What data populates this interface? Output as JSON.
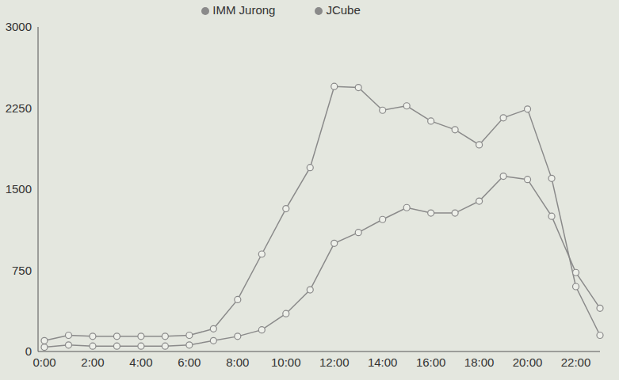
{
  "chart_data": {
    "type": "line",
    "categories": [
      "0:00",
      null,
      "2:00",
      null,
      "4:00",
      null,
      "6:00",
      null,
      "8:00",
      null,
      "10:00",
      null,
      "12:00",
      null,
      "14:00",
      null,
      "16:00",
      null,
      "18:00",
      null,
      "20:00",
      null,
      "22:00",
      null
    ],
    "series": [
      {
        "name": "JCube",
        "color": "#8a8a8a",
        "marker": "circle",
        "values": [
          100,
          150,
          140,
          140,
          140,
          140,
          150,
          210,
          480,
          900,
          1320,
          1700,
          2450,
          2440,
          2230,
          2270,
          2130,
          2050,
          1910,
          2160,
          2240,
          1600,
          600,
          150
        ]
      },
      {
        "name": "IMM Jurong",
        "color": "#8a8a8a",
        "marker": "circle",
        "values": [
          40,
          60,
          50,
          50,
          50,
          50,
          60,
          100,
          140,
          200,
          350,
          570,
          1000,
          1100,
          1220,
          1330,
          1280,
          1280,
          1390,
          1620,
          1590,
          1250,
          730,
          400
        ]
      }
    ],
    "ylim": [
      0,
      3000
    ],
    "yticks": [
      0,
      750,
      1500,
      2250,
      3000
    ],
    "grid": false,
    "legend": "top"
  }
}
